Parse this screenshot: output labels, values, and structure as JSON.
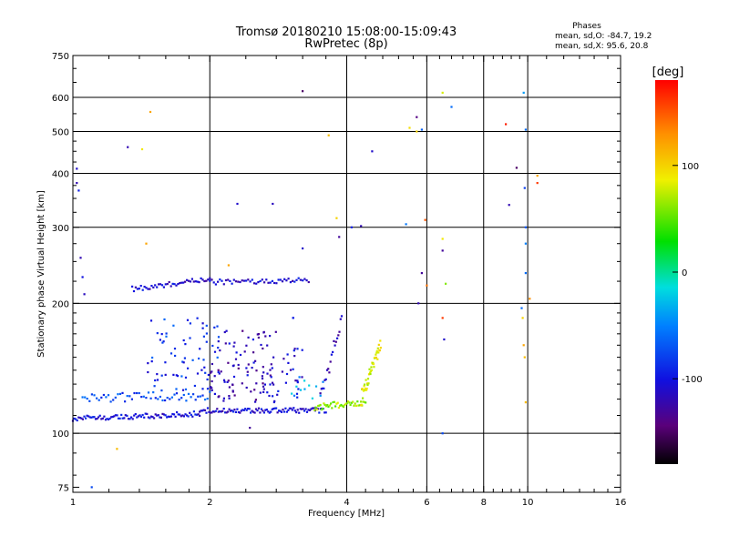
{
  "chart_data": {
    "type": "scatter",
    "title": "Tromsø 20180210 15:08:00-15:09:43",
    "subtitle": "RwPretec (8p)",
    "xlabel": "Frequency [MHz]",
    "ylabel": "Stationary phase Virtual Height [km]",
    "x_scale": "log",
    "y_scale": "log",
    "xlim": [
      1,
      16
    ],
    "ylim": [
      73,
      750
    ],
    "x_ticks": [
      1,
      2,
      4,
      6,
      8,
      10,
      16
    ],
    "x_tick_labels": [
      "1",
      "2",
      "4",
      "6",
      "8",
      "10",
      "16"
    ],
    "y_ticks": [
      75,
      100,
      200,
      300,
      400,
      500,
      600,
      750
    ],
    "y_tick_labels": [
      "75",
      "100",
      "200",
      "300",
      "400",
      "500",
      "600",
      "750"
    ],
    "grid": true,
    "stats": {
      "heading": "Phases",
      "line_o": "mean, sd,O: -84.7, 19.2",
      "line_x": "mean, sd,X:  95.6, 20.8"
    },
    "colorbar": {
      "label": "[deg]",
      "range": [
        -180,
        180
      ],
      "ticks": [
        100,
        0,
        -100
      ],
      "tick_labels": [
        "100",
        "0",
        "-100"
      ]
    },
    "series": [
      {
        "name": "echo traces",
        "traces": [
          {
            "f_start": 1.0,
            "f_end": 1.9,
            "h_start": 108,
            "h_end": 111,
            "phase": -105,
            "jitter": 1.5,
            "count": 90
          },
          {
            "f_start": 1.9,
            "f_end": 3.6,
            "h_start": 113,
            "h_end": 113,
            "phase": -108,
            "jitter": 1.5,
            "count": 95
          },
          {
            "f_start": 3.4,
            "f_end": 4.4,
            "h_start": 115,
            "h_end": 118,
            "phase": 65,
            "jitter": 2.0,
            "count": 45
          },
          {
            "f_start": 4.3,
            "f_end": 4.75,
            "h_start": 120,
            "h_end": 160,
            "phase": 85,
            "jitter": 5.0,
            "count": 45
          },
          {
            "f_start": 1.05,
            "f_end": 2.0,
            "h_start": 121,
            "h_end": 122,
            "phase": -75,
            "jitter": 3.0,
            "count": 55
          },
          {
            "f_start": 1.35,
            "f_end": 2.0,
            "h_start": 216,
            "h_end": 228,
            "phase": -110,
            "jitter": 3.0,
            "count": 45
          },
          {
            "f_start": 2.0,
            "f_end": 3.3,
            "h_start": 224,
            "h_end": 226,
            "phase": -108,
            "jitter": 3.0,
            "count": 50
          },
          {
            "f_start": 3.5,
            "f_end": 3.9,
            "h_start": 120,
            "h_end": 185,
            "phase": -115,
            "jitter": 6.0,
            "count": 20
          }
        ],
        "clouds": [
          {
            "f_min": 1.45,
            "f_max": 2.1,
            "h_min": 125,
            "h_max": 185,
            "phase": -85,
            "count": 70
          },
          {
            "f_min": 2.0,
            "f_max": 2.8,
            "h_min": 118,
            "h_max": 175,
            "phase": -118,
            "count": 90
          },
          {
            "f_min": 2.6,
            "f_max": 3.2,
            "h_min": 118,
            "h_max": 160,
            "phase": -112,
            "count": 35
          },
          {
            "f_min": 3.0,
            "f_max": 3.6,
            "h_min": 118,
            "h_max": 135,
            "phase": -30,
            "count": 12
          }
        ],
        "points": [
          [
            1.02,
            410,
            -110
          ],
          [
            1.02,
            380,
            -120
          ],
          [
            1.03,
            365,
            -95
          ],
          [
            1.04,
            255,
            -120
          ],
          [
            1.05,
            230,
            -100
          ],
          [
            1.06,
            210,
            -115
          ],
          [
            1.32,
            460,
            -120
          ],
          [
            1.42,
            455,
            90
          ],
          [
            1.48,
            555,
            120
          ],
          [
            1.45,
            275,
            120
          ],
          [
            2.3,
            340,
            -110
          ],
          [
            2.75,
            340,
            -115
          ],
          [
            3.2,
            620,
            -150
          ],
          [
            3.2,
            268,
            -110
          ],
          [
            3.65,
            490,
            110
          ],
          [
            3.8,
            315,
            100
          ],
          [
            3.85,
            285,
            -130
          ],
          [
            4.1,
            300,
            -95
          ],
          [
            4.3,
            302,
            -120
          ],
          [
            4.55,
            450,
            -110
          ],
          [
            5.5,
            510,
            95
          ],
          [
            5.7,
            540,
            -140
          ],
          [
            5.7,
            500,
            100
          ],
          [
            5.85,
            505,
            -65
          ],
          [
            5.4,
            305,
            -55
          ],
          [
            5.95,
            312,
            150
          ],
          [
            5.85,
            235,
            -130
          ],
          [
            5.75,
            200,
            -120
          ],
          [
            6.0,
            220,
            140
          ],
          [
            6.5,
            615,
            80
          ],
          [
            6.8,
            570,
            -60
          ],
          [
            6.5,
            282,
            90
          ],
          [
            6.5,
            265,
            -130
          ],
          [
            6.6,
            222,
            60
          ],
          [
            6.5,
            185,
            160
          ],
          [
            6.55,
            165,
            -110
          ],
          [
            6.5,
            100,
            -75
          ],
          [
            8.95,
            520,
            170
          ],
          [
            9.1,
            338,
            -120
          ],
          [
            9.45,
            412,
            -150
          ],
          [
            9.8,
            615,
            -40
          ],
          [
            9.9,
            505,
            -60
          ],
          [
            9.85,
            370,
            -80
          ],
          [
            9.9,
            300,
            -70
          ],
          [
            9.9,
            275,
            -50
          ],
          [
            9.9,
            235,
            -60
          ],
          [
            10.5,
            395,
            120
          ],
          [
            10.5,
            380,
            160
          ],
          [
            10.1,
            205,
            130
          ],
          [
            9.7,
            195,
            -60
          ],
          [
            9.75,
            185,
            100
          ],
          [
            9.8,
            160,
            120
          ],
          [
            9.85,
            150,
            110
          ],
          [
            9.9,
            118,
            110
          ],
          [
            1.1,
            75,
            -75
          ],
          [
            1.25,
            92,
            110
          ],
          [
            2.45,
            103,
            -130
          ],
          [
            3.05,
            185,
            -95
          ],
          [
            3.05,
            185,
            -95
          ],
          [
            2.2,
            245,
            120
          ]
        ]
      }
    ]
  }
}
